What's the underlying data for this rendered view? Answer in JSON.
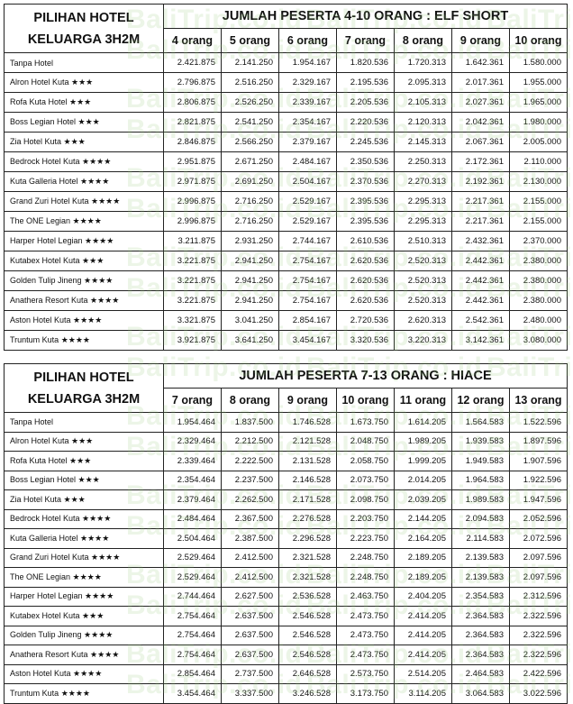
{
  "watermark": "BaliTrip.co.id",
  "tables": [
    {
      "corner": [
        "PILIHAN HOTEL",
        "KELUARGA 3H2M"
      ],
      "title": "JUMLAH PESERTA 4-10 ORANG : ELF SHORT",
      "columns": [
        "4 orang",
        "5 orang",
        "6 orang",
        "7 orang",
        "8 orang",
        "9 orang",
        "10 orang"
      ],
      "rows": [
        {
          "hotel": "Tanpa Hotel",
          "values": [
            "2.421.875",
            "2.141.250",
            "1.954.167",
            "1.820.536",
            "1.720.313",
            "1.642.361",
            "1.580.000"
          ]
        },
        {
          "hotel": "Alron Hotel Kuta ★★★",
          "values": [
            "2.796.875",
            "2.516.250",
            "2.329.167",
            "2.195.536",
            "2.095.313",
            "2.017.361",
            "1.955.000"
          ]
        },
        {
          "hotel": "Rofa Kuta Hotel ★★★",
          "values": [
            "2.806.875",
            "2.526.250",
            "2.339.167",
            "2.205.536",
            "2.105.313",
            "2.027.361",
            "1.965.000"
          ]
        },
        {
          "hotel": "Boss Legian Hotel ★★★",
          "values": [
            "2.821.875",
            "2.541.250",
            "2.354.167",
            "2.220.536",
            "2.120.313",
            "2.042.361",
            "1.980.000"
          ]
        },
        {
          "hotel": "Zia Hotel Kuta ★★★",
          "values": [
            "2.846.875",
            "2.566.250",
            "2.379.167",
            "2.245.536",
            "2.145.313",
            "2.067.361",
            "2.005.000"
          ]
        },
        {
          "hotel": "Bedrock Hotel Kuta ★★★★",
          "values": [
            "2.951.875",
            "2.671.250",
            "2.484.167",
            "2.350.536",
            "2.250.313",
            "2.172.361",
            "2.110.000"
          ]
        },
        {
          "hotel": "Kuta Galleria Hotel ★★★★",
          "values": [
            "2.971.875",
            "2.691.250",
            "2.504.167",
            "2.370.536",
            "2.270.313",
            "2.192.361",
            "2.130.000"
          ]
        },
        {
          "hotel": "Grand Zuri Hotel Kuta ★★★★",
          "values": [
            "2.996.875",
            "2.716.250",
            "2.529.167",
            "2.395.536",
            "2.295.313",
            "2.217.361",
            "2.155.000"
          ]
        },
        {
          "hotel": "The ONE Legian ★★★★",
          "values": [
            "2.996.875",
            "2.716.250",
            "2.529.167",
            "2.395.536",
            "2.295.313",
            "2.217.361",
            "2.155.000"
          ]
        },
        {
          "hotel": "Harper Hotel Legian ★★★★",
          "values": [
            "3.211.875",
            "2.931.250",
            "2.744.167",
            "2.610.536",
            "2.510.313",
            "2.432.361",
            "2.370.000"
          ]
        },
        {
          "hotel": "Kutabex Hotel Kuta ★★★",
          "values": [
            "3.221.875",
            "2.941.250",
            "2.754.167",
            "2.620.536",
            "2.520.313",
            "2.442.361",
            "2.380.000"
          ]
        },
        {
          "hotel": "Golden Tulip Jineng ★★★★",
          "values": [
            "3.221.875",
            "2.941.250",
            "2.754.167",
            "2.620.536",
            "2.520.313",
            "2.442.361",
            "2.380.000"
          ]
        },
        {
          "hotel": "Anathera Resort Kuta ★★★★",
          "values": [
            "3.221.875",
            "2.941.250",
            "2.754.167",
            "2.620.536",
            "2.520.313",
            "2.442.361",
            "2.380.000"
          ]
        },
        {
          "hotel": "Aston Hotel Kuta ★★★★",
          "values": [
            "3.321.875",
            "3.041.250",
            "2.854.167",
            "2.720.536",
            "2.620.313",
            "2.542.361",
            "2.480.000"
          ]
        },
        {
          "hotel": "Truntum Kuta ★★★★",
          "values": [
            "3.921.875",
            "3.641.250",
            "3.454.167",
            "3.320.536",
            "3.220.313",
            "3.142.361",
            "3.080.000"
          ]
        }
      ]
    },
    {
      "corner": [
        "PILIHAN HOTEL",
        "KELUARGA 3H2M"
      ],
      "title": "JUMLAH PESERTA 7-13 ORANG : HIACE",
      "columns": [
        "7 orang",
        "8 orang",
        "9 orang",
        "10 orang",
        "11 orang",
        "12 orang",
        "13 orang"
      ],
      "rows": [
        {
          "hotel": "Tanpa Hotel",
          "values": [
            "1.954.464",
            "1.837.500",
            "1.746.528",
            "1.673.750",
            "1.614.205",
            "1.564.583",
            "1.522.596"
          ]
        },
        {
          "hotel": "Alron Hotel Kuta ★★★",
          "values": [
            "2.329.464",
            "2.212.500",
            "2.121.528",
            "2.048.750",
            "1.989.205",
            "1.939.583",
            "1.897.596"
          ]
        },
        {
          "hotel": "Rofa Kuta Hotel ★★★",
          "values": [
            "2.339.464",
            "2.222.500",
            "2.131.528",
            "2.058.750",
            "1.999.205",
            "1.949.583",
            "1.907.596"
          ]
        },
        {
          "hotel": "Boss Legian Hotel ★★★",
          "values": [
            "2.354.464",
            "2.237.500",
            "2.146.528",
            "2.073.750",
            "2.014.205",
            "1.964.583",
            "1.922.596"
          ]
        },
        {
          "hotel": "Zia Hotel Kuta ★★★",
          "values": [
            "2.379.464",
            "2.262.500",
            "2.171.528",
            "2.098.750",
            "2.039.205",
            "1.989.583",
            "1.947.596"
          ]
        },
        {
          "hotel": "Bedrock Hotel Kuta ★★★★",
          "values": [
            "2.484.464",
            "2.367.500",
            "2.276.528",
            "2.203.750",
            "2.144.205",
            "2.094.583",
            "2.052.596"
          ]
        },
        {
          "hotel": "Kuta Galleria Hotel ★★★★",
          "values": [
            "2.504.464",
            "2.387.500",
            "2.296.528",
            "2.223.750",
            "2.164.205",
            "2.114.583",
            "2.072.596"
          ]
        },
        {
          "hotel": "Grand Zuri Hotel Kuta ★★★★",
          "values": [
            "2.529.464",
            "2.412.500",
            "2.321.528",
            "2.248.750",
            "2.189.205",
            "2.139.583",
            "2.097.596"
          ]
        },
        {
          "hotel": "The ONE Legian ★★★★",
          "values": [
            "2.529.464",
            "2.412.500",
            "2.321.528",
            "2.248.750",
            "2.189.205",
            "2.139.583",
            "2.097.596"
          ]
        },
        {
          "hotel": "Harper Hotel Legian ★★★★",
          "values": [
            "2.744.464",
            "2.627.500",
            "2.536.528",
            "2.463.750",
            "2.404.205",
            "2.354.583",
            "2.312.596"
          ]
        },
        {
          "hotel": "Kutabex Hotel Kuta ★★★",
          "values": [
            "2.754.464",
            "2.637.500",
            "2.546.528",
            "2.473.750",
            "2.414.205",
            "2.364.583",
            "2.322.596"
          ]
        },
        {
          "hotel": "Golden Tulip Jineng ★★★★",
          "values": [
            "2.754.464",
            "2.637.500",
            "2.546.528",
            "2.473.750",
            "2.414.205",
            "2.364.583",
            "2.322.596"
          ]
        },
        {
          "hotel": "Anathera Resort Kuta ★★★★",
          "values": [
            "2.754.464",
            "2.637.500",
            "2.546.528",
            "2.473.750",
            "2.414.205",
            "2.364.583",
            "2.322.596"
          ]
        },
        {
          "hotel": "Aston Hotel Kuta ★★★★",
          "values": [
            "2.854.464",
            "2.737.500",
            "2.646.528",
            "2.573.750",
            "2.514.205",
            "2.464.583",
            "2.422.596"
          ]
        },
        {
          "hotel": "Truntum Kuta ★★★★",
          "values": [
            "3.454.464",
            "3.337.500",
            "3.246.528",
            "3.173.750",
            "3.114.205",
            "3.064.583",
            "3.022.596"
          ]
        }
      ]
    }
  ]
}
